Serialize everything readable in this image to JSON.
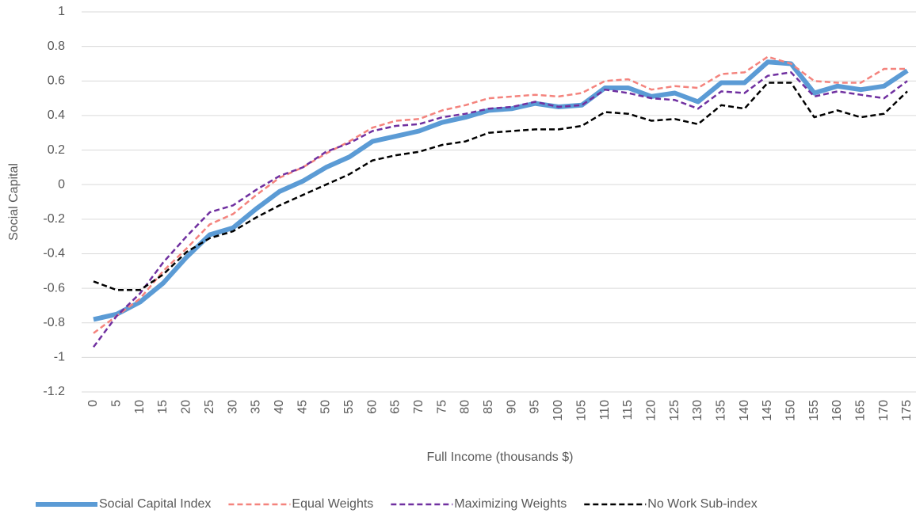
{
  "chart_data": {
    "type": "line",
    "y_label": "Social Capital",
    "x_label": "Full Income (thousands $)",
    "categories": [
      0,
      5,
      10,
      15,
      20,
      25,
      30,
      35,
      40,
      45,
      50,
      55,
      60,
      65,
      70,
      75,
      80,
      85,
      90,
      95,
      100,
      105,
      110,
      115,
      120,
      125,
      130,
      135,
      140,
      145,
      150,
      155,
      160,
      165,
      170,
      175
    ],
    "series": [
      {
        "name": "Social Capital Index",
        "color": "#5b9bd5",
        "dashed": false,
        "values": [
          -0.78,
          -0.75,
          -0.68,
          -0.57,
          -0.42,
          -0.29,
          -0.25,
          -0.14,
          -0.04,
          0.02,
          0.1,
          0.16,
          0.25,
          0.28,
          0.31,
          0.36,
          0.39,
          0.43,
          0.44,
          0.47,
          0.45,
          0.46,
          0.56,
          0.56,
          0.51,
          0.53,
          0.48,
          0.59,
          0.59,
          0.71,
          0.7,
          0.53,
          0.57,
          0.55,
          0.57,
          0.66
        ]
      },
      {
        "name": "Equal Weights",
        "color": "#f4837d",
        "dashed": true,
        "values": [
          -0.86,
          -0.76,
          -0.66,
          -0.5,
          -0.37,
          -0.23,
          -0.17,
          -0.06,
          0.04,
          0.1,
          0.18,
          0.25,
          0.33,
          0.37,
          0.38,
          0.43,
          0.46,
          0.5,
          0.51,
          0.52,
          0.51,
          0.53,
          0.6,
          0.61,
          0.55,
          0.57,
          0.56,
          0.64,
          0.65,
          0.74,
          0.7,
          0.6,
          0.59,
          0.59,
          0.67,
          0.67
        ]
      },
      {
        "name": "Maximizing Weights",
        "color": "#7030a0",
        "dashed": true,
        "values": [
          -0.94,
          -0.76,
          -0.63,
          -0.45,
          -0.3,
          -0.16,
          -0.12,
          -0.03,
          0.05,
          0.1,
          0.19,
          0.24,
          0.31,
          0.34,
          0.35,
          0.39,
          0.41,
          0.44,
          0.45,
          0.48,
          0.45,
          0.46,
          0.55,
          0.53,
          0.5,
          0.49,
          0.44,
          0.54,
          0.53,
          0.63,
          0.65,
          0.51,
          0.54,
          0.52,
          0.5,
          0.6
        ]
      },
      {
        "name": "No Work Sub-index",
        "color": "#000000",
        "dashed": true,
        "values": [
          -0.56,
          -0.61,
          -0.61,
          -0.52,
          -0.39,
          -0.31,
          -0.27,
          -0.19,
          -0.12,
          -0.06,
          0.0,
          0.06,
          0.14,
          0.17,
          0.19,
          0.23,
          0.25,
          0.3,
          0.31,
          0.32,
          0.32,
          0.34,
          0.42,
          0.41,
          0.37,
          0.38,
          0.35,
          0.46,
          0.44,
          0.59,
          0.59,
          0.39,
          0.43,
          0.39,
          0.41,
          0.54
        ]
      }
    ],
    "ylim": [
      -1.2,
      1
    ],
    "yticks": [
      -1.2,
      -1,
      -0.8,
      -0.6,
      -0.4,
      -0.2,
      0,
      0.2,
      0.4,
      0.6,
      0.8,
      1
    ],
    "grid": true,
    "legend": "bottom"
  }
}
